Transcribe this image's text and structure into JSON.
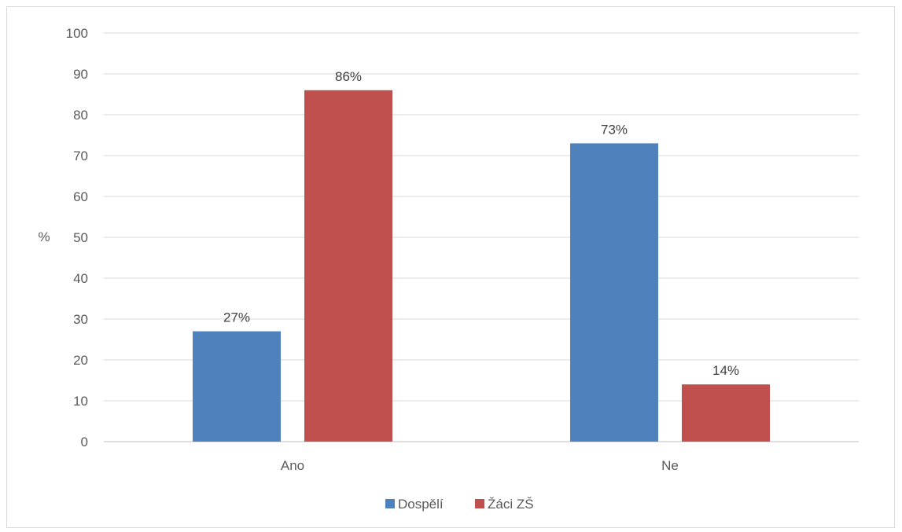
{
  "chart_data": {
    "type": "bar",
    "title": "",
    "xlabel": "",
    "ylabel": "%",
    "ylim": [
      0,
      100
    ],
    "yticks": [
      0,
      10,
      20,
      30,
      40,
      50,
      60,
      70,
      80,
      90,
      100
    ],
    "grid": true,
    "legend_position": "bottom",
    "categories": [
      "Ano",
      "Ne"
    ],
    "series": [
      {
        "name": "Dospělí",
        "color": "#4f81bd",
        "values": [
          27,
          73
        ],
        "labels": [
          "27%",
          "73%"
        ]
      },
      {
        "name": "Žáci ZŠ",
        "color": "#c0504d",
        "values": [
          86,
          14
        ],
        "labels": [
          "86%",
          "14%"
        ]
      }
    ]
  }
}
